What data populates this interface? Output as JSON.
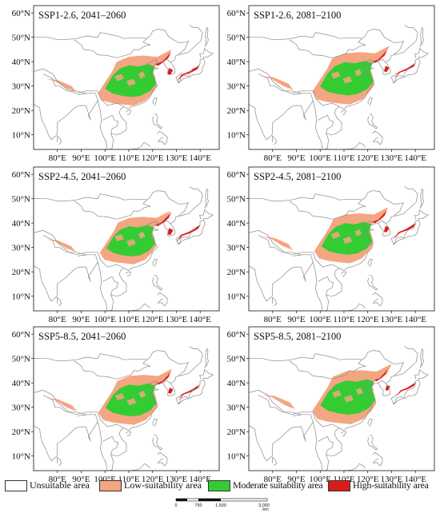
{
  "colors": {
    "unsuitable": "#ffffff",
    "low": "#f4a582",
    "moderate": "#33cc33",
    "high": "#dd1a1a",
    "outline": "#8a8a8a"
  },
  "panels": [
    {
      "title": "SSP1-2.6, 2041–2060"
    },
    {
      "title": "SSP1-2.6, 2081–2100"
    },
    {
      "title": "SSP2-4.5, 2041–2060"
    },
    {
      "title": "SSP2-4.5, 2081–2100"
    },
    {
      "title": "SSP5-8.5, 2041–2060"
    },
    {
      "title": "SSP5-8.5, 2081–2100"
    }
  ],
  "y_ticks": [
    "60°N",
    "50°N",
    "40°N",
    "30°N",
    "20°N",
    "10°N"
  ],
  "x_ticks": [
    "80°E",
    "90°E",
    "100°E",
    "110°E",
    "120°E",
    "130°E",
    "140°E"
  ],
  "legend": [
    {
      "label": "Unsuitable area",
      "color": "#ffffff"
    },
    {
      "label": "Low-suitability area",
      "color": "#f4a582"
    },
    {
      "label": "Moderate suitability area",
      "color": "#33cc33"
    },
    {
      "label": "High-suitability area",
      "color": "#dd1a1a"
    }
  ],
  "scalebar": {
    "labels": [
      "0",
      "750",
      "1,500",
      "3,000"
    ],
    "unit": "km"
  }
}
